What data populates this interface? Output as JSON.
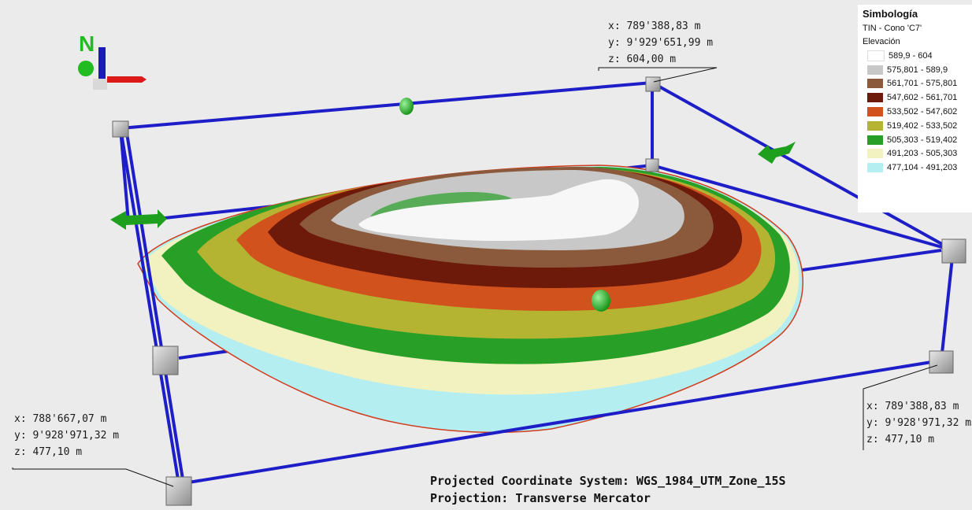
{
  "legend": {
    "title": "Simbología",
    "layer": "TIN - Cono 'C7'",
    "field": "Elevación",
    "classes": [
      {
        "label": "589,9 - 604",
        "color": "#ffffff"
      },
      {
        "label": "575,801 - 589,9",
        "color": "#c8c8c8"
      },
      {
        "label": "561,701 - 575,801",
        "color": "#8b5a3c"
      },
      {
        "label": "547,602 - 561,701",
        "color": "#6e1a0a"
      },
      {
        "label": "533,502 - 547,602",
        "color": "#d2521e"
      },
      {
        "label": "519,402 - 533,502",
        "color": "#b4b432"
      },
      {
        "label": "505,303 - 519,402",
        "color": "#28a028"
      },
      {
        "label": "491,203 - 505,303",
        "color": "#f2f2c0"
      },
      {
        "label": "477,104 - 491,203",
        "color": "#b4eef0"
      }
    ]
  },
  "labels": {
    "top": {
      "x": "x: 789'388,83 m",
      "y": "y: 9'929'651,99 m",
      "z": "z: 604,00 m"
    },
    "bottom_left": {
      "x": "x: 788'667,07 m",
      "y": "y: 9'928'971,32 m",
      "z": "z: 477,10 m"
    },
    "bottom_right": {
      "x": "x: 789'388,83 m",
      "y": "y: 9'928'971,32 m",
      "z": "z: 477,10 m"
    }
  },
  "projection": {
    "line1": "Projected Coordinate System: WGS_1984_UTM_Zone_15S",
    "line2": "Projection: Transverse Mercator"
  },
  "north_arrow": "N"
}
